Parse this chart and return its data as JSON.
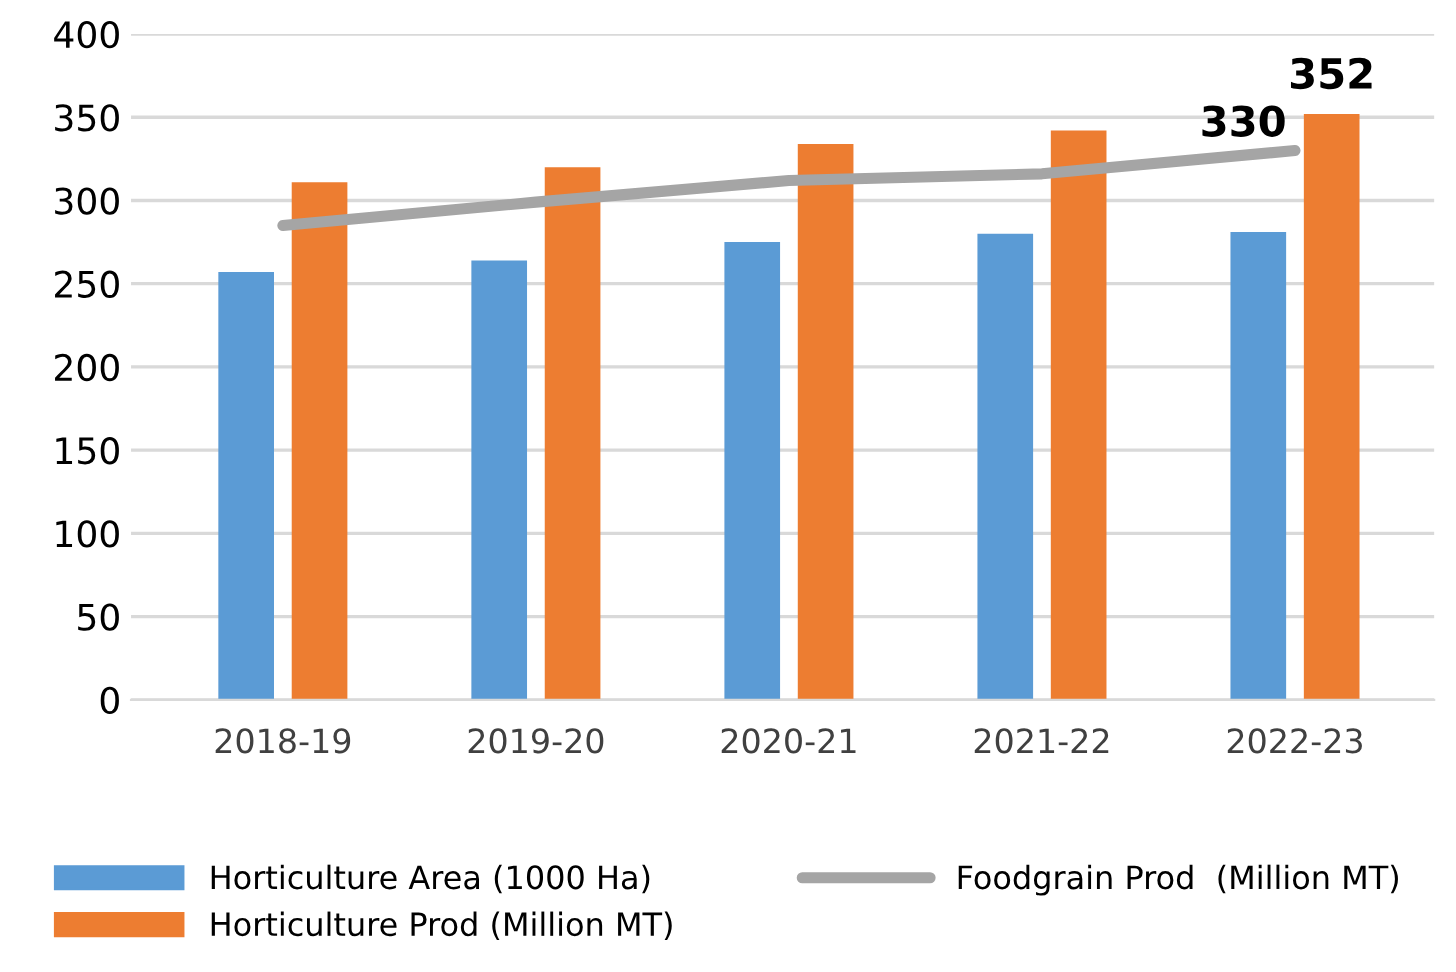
{
  "chart_data": {
    "type": "bar",
    "categories": [
      "2018-19",
      "2019-20",
      "2020-21",
      "2021-22",
      "2022-23"
    ],
    "series": [
      {
        "name": "Horticulture Area (1000 Ha)",
        "color": "#5b9bd5",
        "values": [
          257,
          264,
          275,
          280,
          281
        ]
      },
      {
        "name": "Horticulture Prod (Million MT)",
        "color": "#ed7d31",
        "values": [
          311,
          320,
          334,
          342,
          352
        ],
        "value_labels": [
          null,
          null,
          null,
          null,
          "352"
        ]
      },
      {
        "name": "Foodgrain Prod  (Million MT)",
        "type": "line",
        "color": "#a5a5a5",
        "values": [
          285,
          299,
          312,
          316,
          330
        ],
        "value_labels": [
          null,
          null,
          null,
          null,
          "330"
        ],
        "marker": "none"
      }
    ],
    "ylim": [
      0,
      400
    ],
    "yticks": [
      0,
      50,
      100,
      150,
      200,
      250,
      300,
      350,
      400
    ],
    "grid": "y",
    "legend": "bottom"
  }
}
